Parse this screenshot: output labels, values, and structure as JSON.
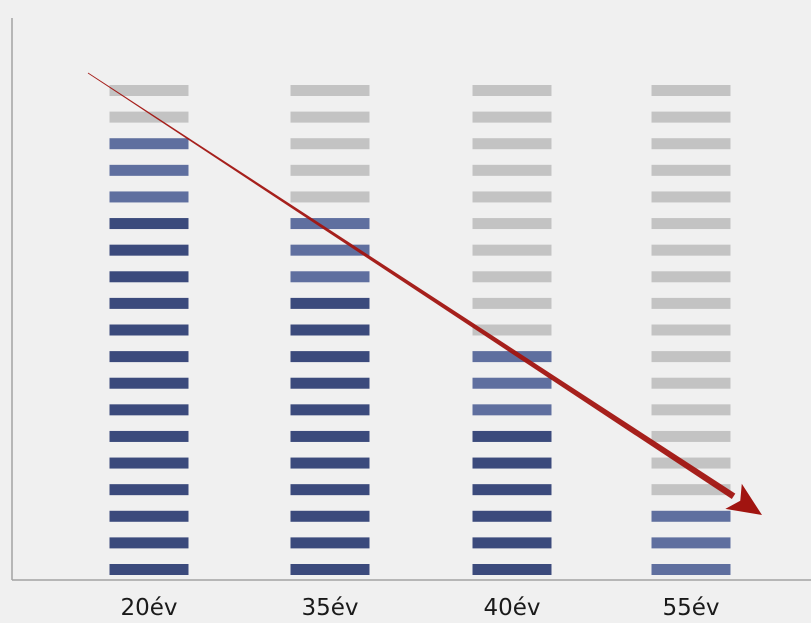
{
  "chart_data": {
    "type": "bar",
    "title": "",
    "xlabel": "",
    "ylabel": "",
    "categories": [
      "20év",
      "35év",
      "40év",
      "55év"
    ],
    "segments_total": 19,
    "values": [
      17,
      14,
      9,
      3
    ],
    "grid": false,
    "legend": "none",
    "annotations": [
      {
        "type": "trend-arrow",
        "direction": "descending",
        "from_category": "20év",
        "to_category": "55év"
      }
    ],
    "colors": {
      "background": "#f0f0f0",
      "axis": "#a3a3a3",
      "segment_filled": "#3b4a7c",
      "segment_filled_light": "#5f6f9f",
      "segment_empty": "#c3c3c3",
      "arrow": "#a11410"
    }
  }
}
